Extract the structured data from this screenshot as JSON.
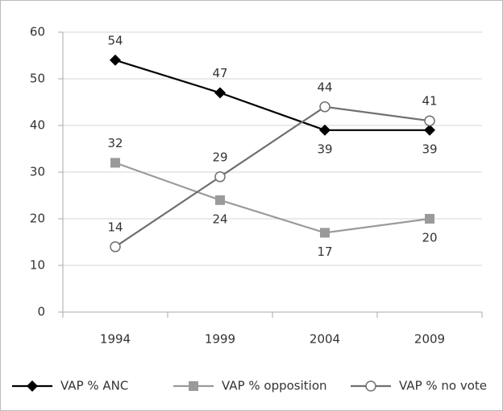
{
  "chart_data": {
    "type": "line",
    "categories": [
      "1994",
      "1999",
      "2004",
      "2009"
    ],
    "series": [
      {
        "name": "VAP % ANC",
        "color": "#000000",
        "marker": "diamond",
        "values": [
          54,
          47,
          39,
          39
        ]
      },
      {
        "name": "VAP % opposition",
        "color": "#9a9a9a",
        "marker": "square",
        "values": [
          32,
          24,
          17,
          20
        ]
      },
      {
        "name": "VAP % no vote",
        "color": "#707070",
        "marker": "circle",
        "values": [
          14,
          29,
          44,
          41
        ]
      }
    ],
    "ylim": [
      0,
      60
    ],
    "yticks": [
      0,
      10,
      20,
      30,
      40,
      50,
      60
    ],
    "grid": true,
    "legend": "bottom"
  }
}
